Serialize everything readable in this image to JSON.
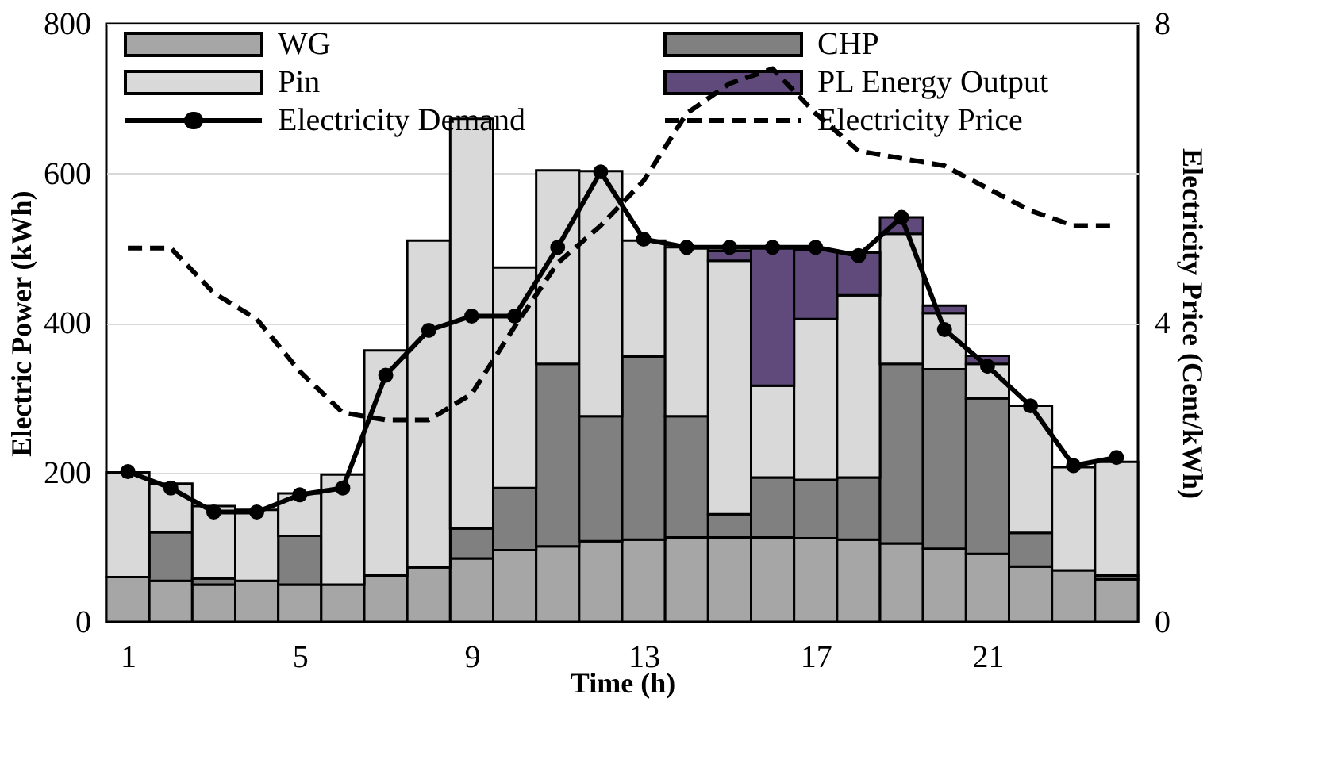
{
  "chart_data": {
    "type": "bar",
    "stacked": true,
    "xlabel": "Time (h)",
    "ylabel": "Electric Power (kWh)",
    "y2label": "Electricity Price (Cent/kWh)",
    "x": [
      1,
      2,
      3,
      4,
      5,
      6,
      7,
      8,
      9,
      10,
      11,
      12,
      13,
      14,
      15,
      16,
      17,
      18,
      19,
      20,
      21,
      22,
      23,
      24
    ],
    "xlim": [
      0.5,
      24.5
    ],
    "xticks": [
      1,
      5,
      9,
      13,
      17,
      21
    ],
    "ylim": [
      0,
      800
    ],
    "yticks": [
      0,
      200,
      400,
      600,
      800
    ],
    "y2lim": [
      0,
      8
    ],
    "y2ticks": [
      0,
      4,
      8
    ],
    "grid": "y",
    "legend": "top",
    "series": [
      {
        "name": "WG",
        "color": "#a6a6a6",
        "values": [
          60,
          55,
          50,
          55,
          50,
          50,
          62,
          73,
          85,
          96,
          101,
          108,
          110,
          113,
          113,
          113,
          112,
          110,
          105,
          98,
          91,
          74,
          69,
          57
        ]
      },
      {
        "name": "CHP",
        "color": "#808080",
        "values": [
          0,
          65,
          8,
          0,
          65,
          0,
          0,
          0,
          40,
          83,
          244,
          167,
          245,
          162,
          31,
          80,
          78,
          83,
          240,
          240,
          208,
          45,
          0,
          5
        ]
      },
      {
        "name": "Pin",
        "color": "#d9d9d9",
        "values": [
          140,
          65,
          97,
          95,
          57,
          147,
          301,
          437,
          548,
          295,
          259,
          328,
          155,
          226,
          339,
          123,
          215,
          244,
          174,
          75,
          46,
          170,
          138,
          152
        ]
      },
      {
        "name": "PL Energy Output",
        "color": "#604a7b",
        "values": [
          0,
          0,
          0,
          0,
          0,
          0,
          0,
          0,
          0,
          0,
          0,
          0,
          0,
          0,
          13,
          185,
          92,
          57,
          22,
          10,
          11,
          0,
          0,
          0
        ]
      },
      {
        "name": "Electricity Demand",
        "type": "line",
        "color": "#000000",
        "marker": "circle",
        "line_style": "solid",
        "values": [
          201,
          179,
          147,
          147,
          170,
          179,
          330,
          390,
          409,
          409,
          501,
          602,
          512,
          501,
          501,
          501,
          501,
          490,
          541,
          391,
          342,
          289,
          209,
          220
        ]
      },
      {
        "name": "Electricity Price",
        "type": "line",
        "axis": "y2",
        "color": "#000000",
        "marker": "none",
        "line_style": "dashed",
        "values": [
          5.0,
          5.0,
          4.4,
          4.05,
          3.35,
          2.8,
          2.7,
          2.7,
          3.05,
          3.95,
          4.8,
          5.3,
          5.9,
          6.8,
          7.2,
          7.4,
          6.8,
          6.3,
          6.2,
          6.1,
          5.8,
          5.5,
          5.3,
          5.3
        ]
      }
    ]
  }
}
